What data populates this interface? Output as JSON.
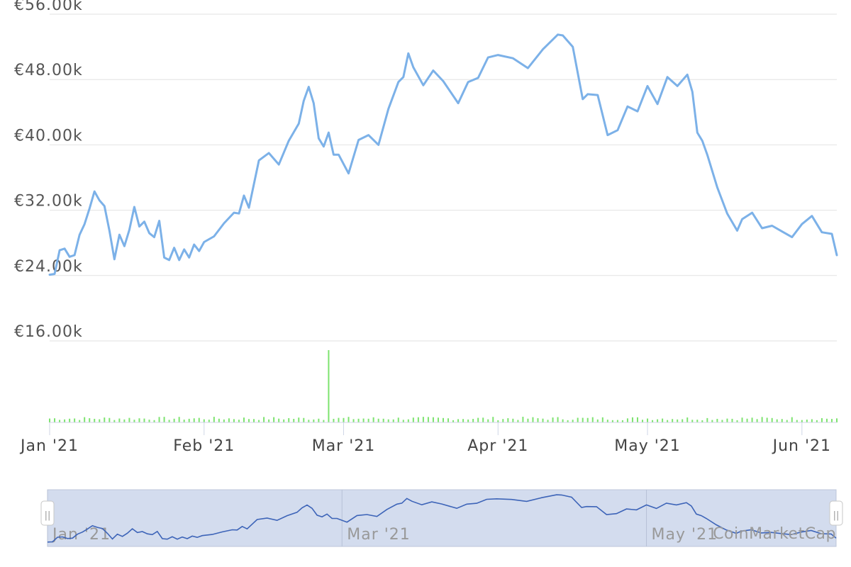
{
  "chart_data": {
    "type": "line",
    "currency": "EUR",
    "y_axis": {
      "ticks": [
        "€16.00k",
        "€24.00k",
        "€32.00k",
        "€40.00k",
        "€48.00k",
        "€56.00k"
      ],
      "tick_values": [
        16000,
        24000,
        32000,
        40000,
        48000,
        56000
      ],
      "ylim": [
        16000,
        56000
      ]
    },
    "x_axis": {
      "ticks": [
        "Jan '21",
        "Feb '21",
        "Mar '21",
        "Apr '21",
        "May '21",
        "Jun '21"
      ],
      "tick_dates": [
        "2021-01-01",
        "2021-02-01",
        "2021-03-01",
        "2021-04-01",
        "2021-05-01",
        "2021-06-01"
      ],
      "xlim": [
        "2021-01-01",
        "2021-06-08"
      ]
    },
    "grid": true,
    "price_color": "#7cb1e8",
    "volume_color": "#7de36f",
    "series": [
      {
        "type": "line",
        "x": [
          "2021-01-01",
          "2021-01-02",
          "2021-01-03",
          "2021-01-04",
          "2021-01-05",
          "2021-01-06",
          "2021-01-07",
          "2021-01-08",
          "2021-01-09",
          "2021-01-10",
          "2021-01-11",
          "2021-01-12",
          "2021-01-13",
          "2021-01-14",
          "2021-01-15",
          "2021-01-16",
          "2021-01-17",
          "2021-01-18",
          "2021-01-19",
          "2021-01-20",
          "2021-01-21",
          "2021-01-22",
          "2021-01-23",
          "2021-01-24",
          "2021-01-25",
          "2021-01-26",
          "2021-01-27",
          "2021-01-28",
          "2021-01-29",
          "2021-01-30",
          "2021-01-31",
          "2021-02-01",
          "2021-02-03",
          "2021-02-05",
          "2021-02-07",
          "2021-02-08",
          "2021-02-09",
          "2021-02-10",
          "2021-02-12",
          "2021-02-14",
          "2021-02-16",
          "2021-02-18",
          "2021-02-20",
          "2021-02-21",
          "2021-02-22",
          "2021-02-23",
          "2021-02-24",
          "2021-02-25",
          "2021-02-26",
          "2021-02-27",
          "2021-02-28",
          "2021-03-02",
          "2021-03-04",
          "2021-03-06",
          "2021-03-08",
          "2021-03-10",
          "2021-03-12",
          "2021-03-13",
          "2021-03-14",
          "2021-03-15",
          "2021-03-17",
          "2021-03-19",
          "2021-03-21",
          "2021-03-24",
          "2021-03-26",
          "2021-03-28",
          "2021-03-30",
          "2021-04-01",
          "2021-04-04",
          "2021-04-07",
          "2021-04-10",
          "2021-04-13",
          "2021-04-14",
          "2021-04-16",
          "2021-04-18",
          "2021-04-19",
          "2021-04-21",
          "2021-04-23",
          "2021-04-25",
          "2021-04-27",
          "2021-04-29",
          "2021-05-01",
          "2021-05-03",
          "2021-05-05",
          "2021-05-07",
          "2021-05-09",
          "2021-05-10",
          "2021-05-11",
          "2021-05-12",
          "2021-05-13",
          "2021-05-15",
          "2021-05-17",
          "2021-05-19",
          "2021-05-20",
          "2021-05-22",
          "2021-05-24",
          "2021-05-26",
          "2021-05-28",
          "2021-05-30",
          "2021-06-01",
          "2021-06-03",
          "2021-06-05",
          "2021-06-07",
          "2021-06-08"
        ],
        "y": [
          24100,
          24200,
          27100,
          27300,
          26300,
          26500,
          29000,
          30300,
          32200,
          34300,
          33200,
          32500,
          29500,
          26000,
          29000,
          27600,
          29600,
          32400,
          30000,
          30600,
          29200,
          28700,
          30700,
          26200,
          25900,
          27400,
          25900,
          27200,
          26200,
          27800,
          27000,
          28100,
          28800,
          30400,
          31700,
          31600,
          33800,
          32300,
          38100,
          39000,
          37600,
          40500,
          42600,
          45400,
          47100,
          45100,
          40800,
          39800,
          41500,
          38800,
          38800,
          36500,
          40600,
          41200,
          40000,
          44400,
          47700,
          48300,
          51200,
          49500,
          47300,
          49100,
          47800,
          45100,
          47700,
          48200,
          50700,
          51000,
          50600,
          49400,
          51700,
          53500,
          53400,
          52000,
          45600,
          46200,
          46100,
          41200,
          41800,
          44700,
          44100,
          47200,
          45000,
          48300,
          47200,
          48600,
          46500,
          41500,
          40500,
          38800,
          34800,
          31600,
          29500,
          30900,
          31700,
          29800,
          30100,
          29400,
          28700,
          30300,
          31300,
          29300,
          29100,
          26500
        ]
      },
      {
        "type": "bar",
        "spike_date": "2021-02-26"
      }
    ]
  },
  "navigator": {
    "ticks": [
      "Jan '21",
      "Mar '21",
      "May '21"
    ],
    "tick_dates": [
      "2021-01-01",
      "2021-03-01",
      "2021-05-01"
    ],
    "handle_glyph": "||",
    "line_color": "#3d64b8",
    "fill_color": "#d3dcee"
  },
  "credit": "CoinMarketCap"
}
